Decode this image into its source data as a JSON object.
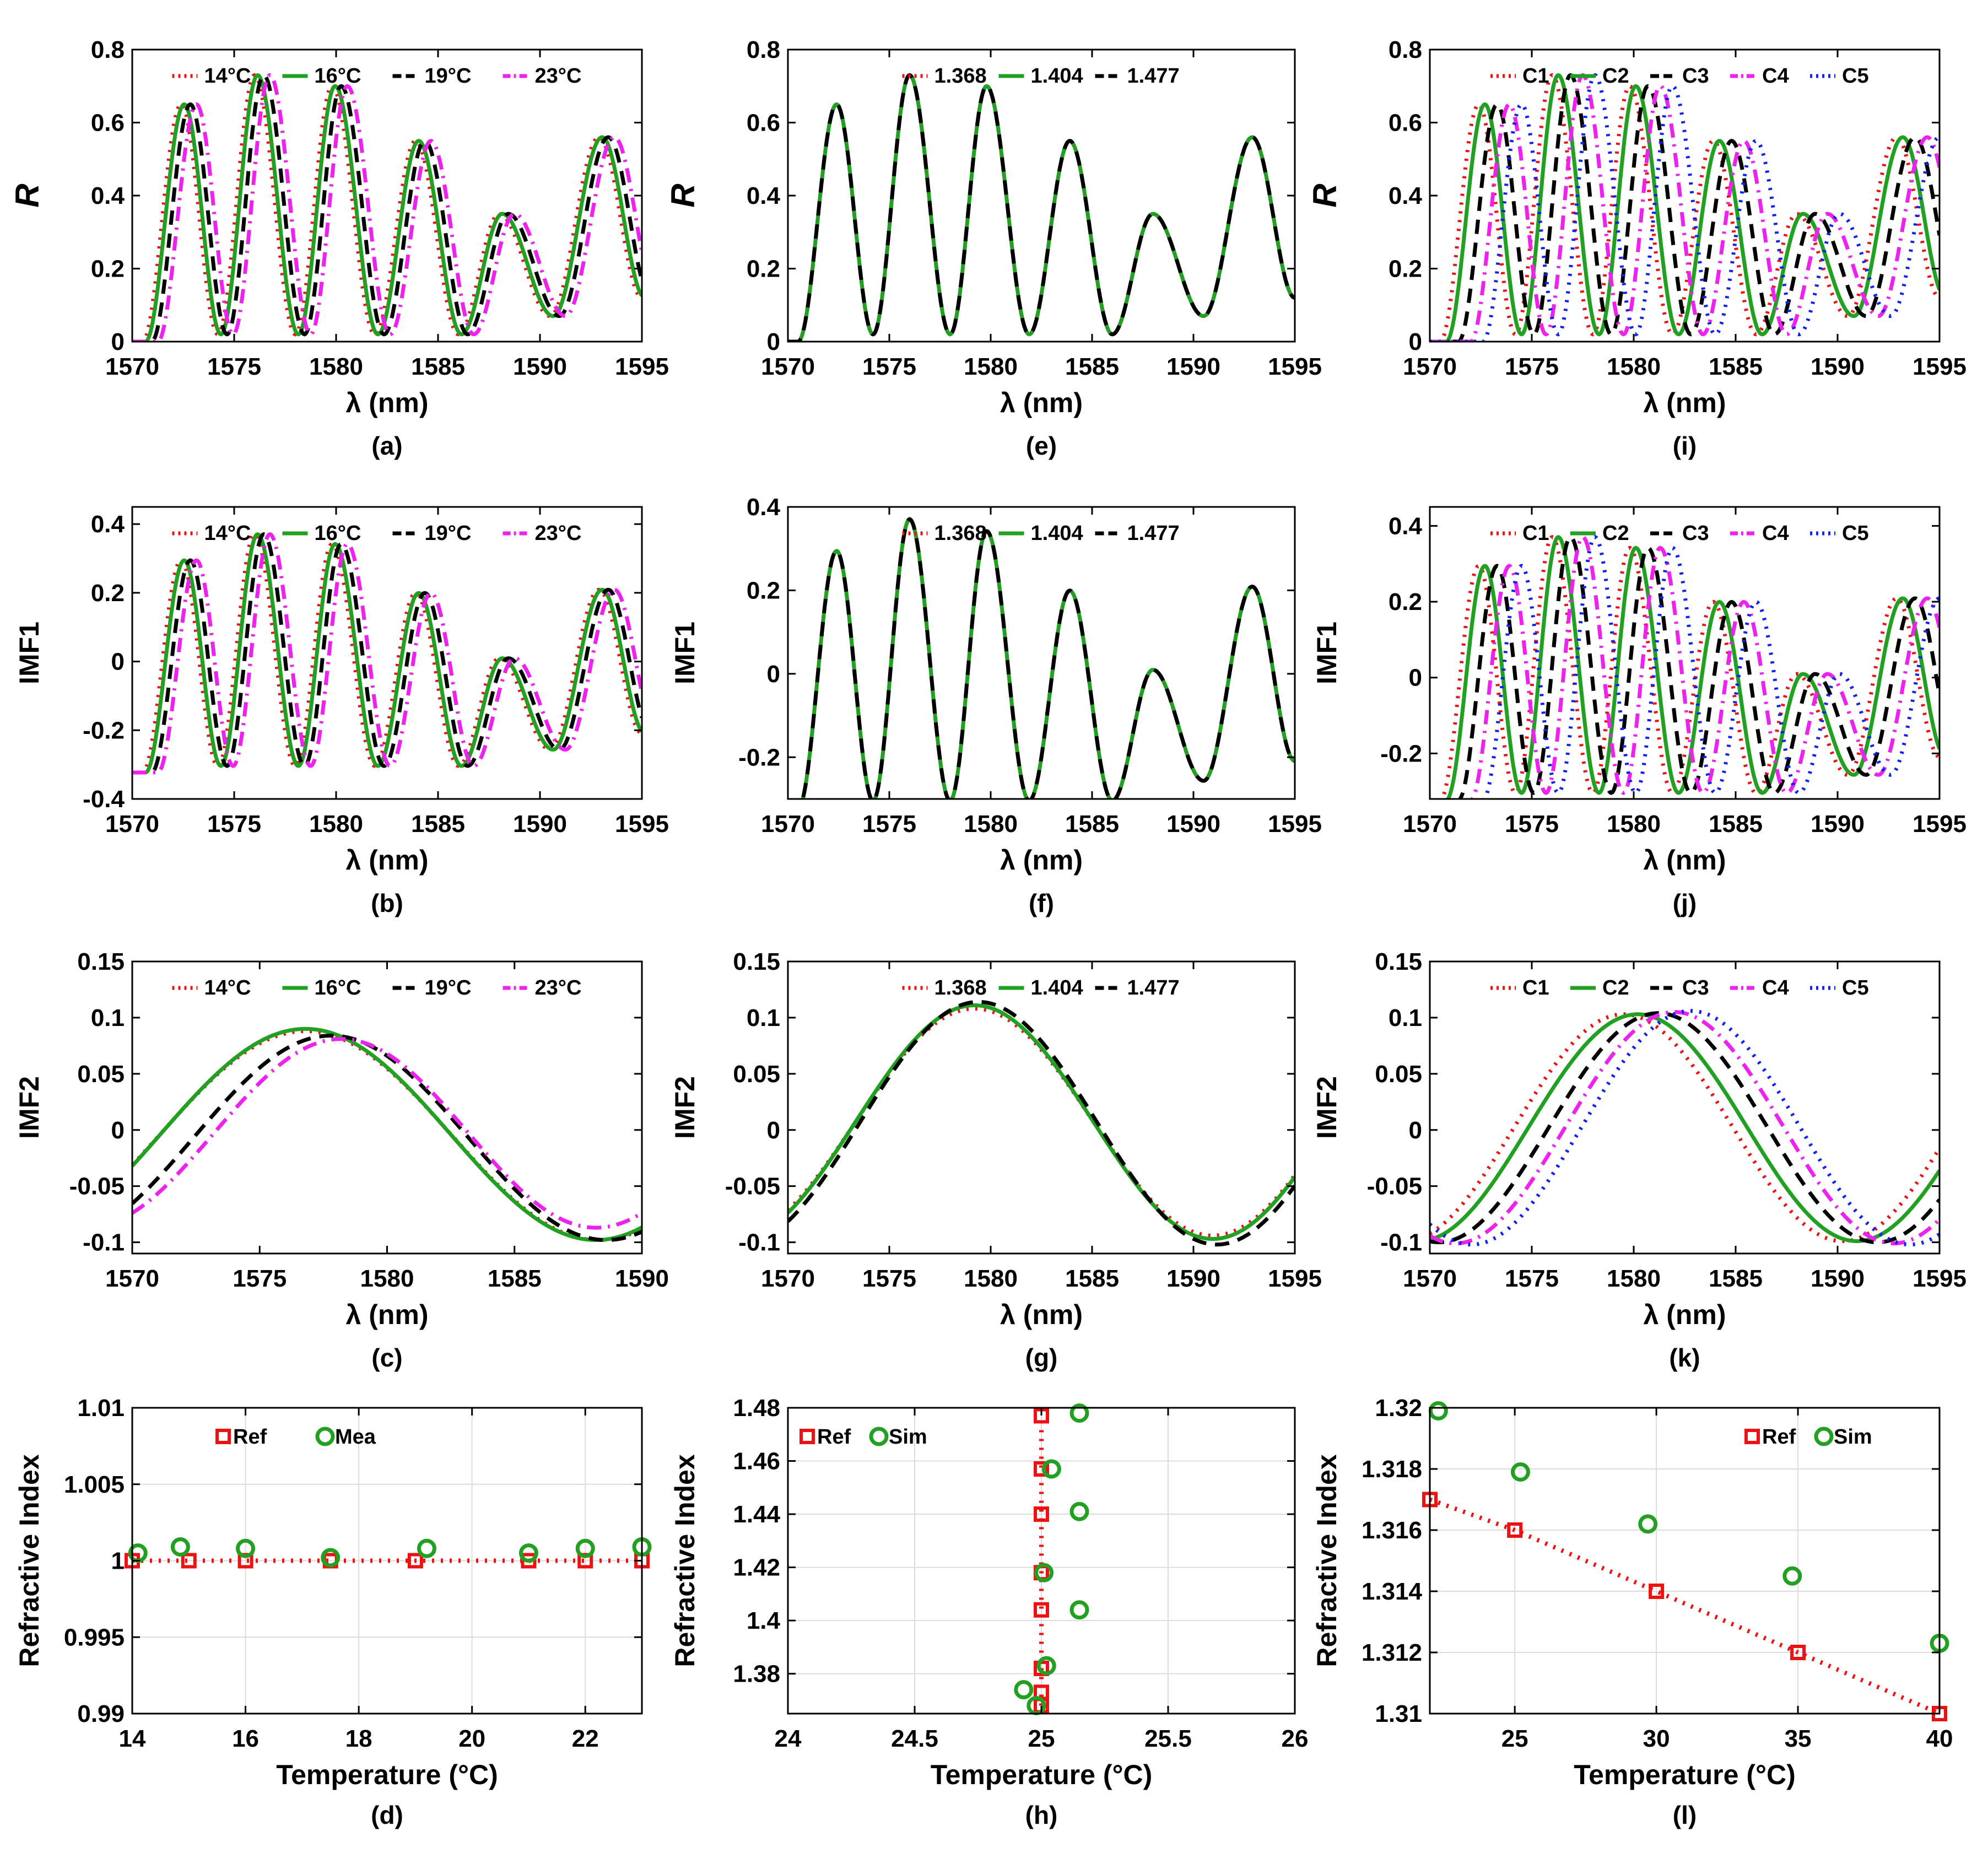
{
  "figure": {
    "colors": {
      "red": "#ee1111",
      "green": "#22a022",
      "black": "#000000",
      "magenta": "#ee22ee",
      "blue": "#1122ee"
    },
    "series_legends": {
      "temperature": [
        "14°C",
        "16°C",
        "19°C",
        "23°C"
      ],
      "ri": [
        "1.368",
        "1.404",
        "1.477"
      ],
      "conc": [
        "C1",
        "C2",
        "C3",
        "C4",
        "C5"
      ]
    }
  },
  "chart_data": [
    {
      "id": "a",
      "panel_label": "(a)",
      "type": "line",
      "xlabel": "λ (nm)",
      "ylabel": "R",
      "ylabel_italic": true,
      "xlim": [
        1570,
        1595
      ],
      "ylim": [
        0,
        0.8
      ],
      "xticks": [
        1570,
        1575,
        1580,
        1585,
        1590,
        1595
      ],
      "yticks": [
        0,
        0.2,
        0.4,
        0.6,
        0.8
      ],
      "ytick_labels": [
        "0",
        "0.2",
        "0.4",
        "0.6",
        "0.8"
      ],
      "legend": [
        {
          "name": "14°C",
          "color": "red",
          "dash": "dot"
        },
        {
          "name": "16°C",
          "color": "green",
          "dash": "solid"
        },
        {
          "name": "19°C",
          "color": "black",
          "dash": "dash"
        },
        {
          "name": "23°C",
          "color": "magenta",
          "dash": "dashdot"
        }
      ],
      "curve": "R",
      "wave": {
        "shifts": [
          0,
          0.15,
          0.45,
          0.75
        ]
      }
    },
    {
      "id": "b",
      "panel_label": "(b)",
      "type": "line",
      "xlabel": "λ (nm)",
      "ylabel": "IMF1",
      "xlim": [
        1570,
        1595
      ],
      "ylim": [
        -0.4,
        0.45
      ],
      "xticks": [
        1570,
        1575,
        1580,
        1585,
        1590,
        1595
      ],
      "yticks": [
        -0.4,
        -0.2,
        0,
        0.2,
        0.4
      ],
      "ytick_labels": [
        "-0.4",
        "-0.2",
        "0",
        "0.2",
        "0.4"
      ],
      "legend": [
        {
          "name": "14°C",
          "color": "red",
          "dash": "dot"
        },
        {
          "name": "16°C",
          "color": "green",
          "dash": "solid"
        },
        {
          "name": "19°C",
          "color": "black",
          "dash": "dash"
        },
        {
          "name": "23°C",
          "color": "magenta",
          "dash": "dashdot"
        }
      ],
      "curve": "IMF1",
      "wave": {
        "shifts": [
          0,
          0.15,
          0.45,
          0.75
        ]
      }
    },
    {
      "id": "c",
      "panel_label": "(c)",
      "type": "line",
      "xlabel": "λ (nm)",
      "ylabel": "IMF2",
      "xlim": [
        1570,
        1590
      ],
      "ylim": [
        -0.11,
        0.15
      ],
      "xticks": [
        1570,
        1575,
        1580,
        1585,
        1590
      ],
      "yticks": [
        -0.1,
        -0.05,
        0,
        0.05,
        0.1,
        0.15
      ],
      "ytick_labels": [
        "-0.1",
        "-0.05",
        "0",
        "0.05",
        "0.1",
        "0.15"
      ],
      "legend": [
        {
          "name": "14°C",
          "color": "red",
          "dash": "dot"
        },
        {
          "name": "16°C",
          "color": "green",
          "dash": "solid"
        },
        {
          "name": "19°C",
          "color": "black",
          "dash": "dash"
        },
        {
          "name": "23°C",
          "color": "magenta",
          "dash": "dashdot"
        }
      ],
      "curve": "IMF2",
      "sine": [
        {
          "peak": 1576.8,
          "amp": 0.093,
          "off": -0.005,
          "P": 23
        },
        {
          "peak": 1576.8,
          "amp": 0.094,
          "off": -0.004,
          "P": 22.8
        },
        {
          "peak": 1577.8,
          "amp": 0.091,
          "off": -0.007,
          "P": 21.6
        },
        {
          "peak": 1578.2,
          "amp": 0.084,
          "off": -0.003,
          "P": 20
        }
      ]
    },
    {
      "id": "d",
      "panel_label": "(d)",
      "type": "scatter",
      "xlabel": "Temperature (°C)",
      "ylabel": "Refractive Index",
      "xlim": [
        14,
        23
      ],
      "ylim": [
        0.99,
        1.01
      ],
      "xticks": [
        14,
        16,
        18,
        20,
        22
      ],
      "yticks": [
        0.99,
        0.995,
        1,
        1.005,
        1.01
      ],
      "ytick_labels": [
        "0.99",
        "0.995",
        "1",
        "1.005",
        "1.01"
      ],
      "legend": [
        {
          "name": "Ref",
          "marker": "square",
          "color": "red"
        },
        {
          "name": "Mea",
          "marker": "circle",
          "color": "green"
        }
      ],
      "legend_pos": "top-center",
      "series": [
        {
          "name": "Ref",
          "marker": "square",
          "color": "red",
          "line": true,
          "x": [
            14,
            15,
            16,
            17.5,
            19,
            21,
            22,
            23
          ],
          "y": [
            1,
            1,
            1,
            1,
            1,
            1,
            1,
            1
          ]
        },
        {
          "name": "Mea",
          "marker": "circle",
          "color": "green",
          "x": [
            14.1,
            14.85,
            16,
            17.5,
            19.2,
            21,
            22,
            23
          ],
          "y": [
            1.0005,
            1.0009,
            1.0008,
            1.0002,
            1.0008,
            1.0005,
            1.0008,
            1.0009
          ]
        }
      ]
    },
    {
      "id": "e",
      "panel_label": "(e)",
      "type": "line",
      "xlabel": "λ (nm)",
      "ylabel": "R",
      "ylabel_italic": true,
      "xlim": [
        1570,
        1595
      ],
      "ylim": [
        0,
        0.8
      ],
      "xticks": [
        1570,
        1575,
        1580,
        1585,
        1590,
        1595
      ],
      "yticks": [
        0,
        0.2,
        0.4,
        0.6,
        0.8
      ],
      "ytick_labels": [
        "0",
        "0.2",
        "0.4",
        "0.6",
        "0.8"
      ],
      "legend": [
        {
          "name": "1.368",
          "color": "red",
          "dash": "dot"
        },
        {
          "name": "1.404",
          "color": "green",
          "dash": "solid"
        },
        {
          "name": "1.477",
          "color": "black",
          "dash": "dash"
        }
      ],
      "curve": "R",
      "wave": {
        "shifts": [
          0,
          0,
          0
        ]
      }
    },
    {
      "id": "f",
      "panel_label": "(f)",
      "type": "line",
      "xlabel": "λ (nm)",
      "ylabel": "IMF1",
      "xlim": [
        1570,
        1595
      ],
      "ylim": [
        -0.3,
        0.4
      ],
      "xticks": [
        1570,
        1575,
        1580,
        1585,
        1590,
        1595
      ],
      "yticks": [
        -0.2,
        0,
        0.2,
        0.4
      ],
      "ytick_labels": [
        "-0.2",
        "0",
        "0.2",
        "0.4"
      ],
      "legend": [
        {
          "name": "1.368",
          "color": "red",
          "dash": "dot"
        },
        {
          "name": "1.404",
          "color": "green",
          "dash": "solid"
        },
        {
          "name": "1.477",
          "color": "black",
          "dash": "dash"
        }
      ],
      "curve": "IMF1",
      "wave": {
        "shifts": [
          0,
          0,
          0
        ]
      }
    },
    {
      "id": "g",
      "panel_label": "(g)",
      "type": "line",
      "xlabel": "λ (nm)",
      "ylabel": "IMF2",
      "xlim": [
        1570,
        1595
      ],
      "ylim": [
        -0.11,
        0.15
      ],
      "xticks": [
        1570,
        1575,
        1580,
        1585,
        1590,
        1595
      ],
      "yticks": [
        -0.1,
        -0.05,
        0,
        0.05,
        0.1,
        0.15
      ],
      "ytick_labels": [
        "-0.1",
        "-0.05",
        "0",
        "0.05",
        "0.1",
        "0.15"
      ],
      "legend": [
        {
          "name": "1.368",
          "color": "red",
          "dash": "dot"
        },
        {
          "name": "1.404",
          "color": "green",
          "dash": "solid"
        },
        {
          "name": "1.477",
          "color": "black",
          "dash": "dash"
        }
      ],
      "curve": "IMF2",
      "sine": [
        {
          "peak": 1579.2,
          "amp": 0.101,
          "off": 0.007,
          "P": 23.5
        },
        {
          "peak": 1579.2,
          "amp": 0.104,
          "off": 0.007,
          "P": 23.5
        },
        {
          "peak": 1579.4,
          "amp": 0.108,
          "off": 0.006,
          "P": 23.5
        }
      ]
    },
    {
      "id": "h",
      "panel_label": "(h)",
      "type": "scatter",
      "xlabel": "Temperature (°C)",
      "ylabel": "Refractive Index",
      "xlim": [
        24,
        26
      ],
      "ylim": [
        1.365,
        1.48
      ],
      "xticks": [
        24,
        24.5,
        25,
        25.5,
        26
      ],
      "yticks": [
        1.38,
        1.4,
        1.42,
        1.44,
        1.46,
        1.48
      ],
      "ytick_labels": [
        "1.38",
        "1.4",
        "1.42",
        "1.44",
        "1.46",
        "1.48"
      ],
      "legend": [
        {
          "name": "Ref",
          "marker": "square",
          "color": "red"
        },
        {
          "name": "Sim",
          "marker": "circle",
          "color": "green"
        }
      ],
      "legend_pos": "top-left",
      "series": [
        {
          "name": "Ref",
          "marker": "square",
          "color": "red",
          "line": true,
          "x": [
            25,
            25,
            25,
            25,
            25,
            25,
            25,
            25
          ],
          "y": [
            1.368,
            1.373,
            1.382,
            1.404,
            1.418,
            1.44,
            1.457,
            1.477
          ]
        },
        {
          "name": "Sim",
          "marker": "circle",
          "color": "green",
          "x": [
            24.93,
            24.98,
            25.02,
            25.04,
            25.15,
            25.15,
            25.15,
            25.01
          ],
          "y": [
            1.374,
            1.368,
            1.383,
            1.457,
            1.404,
            1.441,
            1.478,
            1.418
          ]
        }
      ]
    },
    {
      "id": "i",
      "panel_label": "(i)",
      "type": "line",
      "xlabel": "λ (nm)",
      "ylabel": "R",
      "ylabel_italic": true,
      "xlim": [
        1570,
        1595
      ],
      "ylim": [
        0,
        0.8
      ],
      "xticks": [
        1570,
        1575,
        1580,
        1585,
        1590,
        1595
      ],
      "yticks": [
        0,
        0.2,
        0.4,
        0.6,
        0.8
      ],
      "ytick_labels": [
        "0",
        "0.2",
        "0.4",
        "0.6",
        "0.8"
      ],
      "legend": [
        {
          "name": "C1",
          "color": "red",
          "dash": "dot"
        },
        {
          "name": "C2",
          "color": "green",
          "dash": "solid"
        },
        {
          "name": "C3",
          "color": "black",
          "dash": "dash"
        },
        {
          "name": "C4",
          "color": "magenta",
          "dash": "dashdot"
        },
        {
          "name": "C5",
          "color": "blue",
          "dash": "dot"
        }
      ],
      "curve": "R",
      "wave": {
        "shifts": [
          0,
          0.3,
          0.9,
          1.5,
          2.1
        ]
      }
    },
    {
      "id": "j",
      "panel_label": "(j)",
      "type": "line",
      "xlabel": "λ (nm)",
      "ylabel": "IMF1",
      "xlim": [
        1570,
        1595
      ],
      "ylim": [
        -0.32,
        0.45
      ],
      "xticks": [
        1570,
        1575,
        1580,
        1585,
        1590,
        1595
      ],
      "yticks": [
        -0.2,
        0,
        0.2,
        0.4
      ],
      "ytick_labels": [
        "-0.2",
        "0",
        "0.2",
        "0.4"
      ],
      "legend": [
        {
          "name": "C1",
          "color": "red",
          "dash": "dot"
        },
        {
          "name": "C2",
          "color": "green",
          "dash": "solid"
        },
        {
          "name": "C3",
          "color": "black",
          "dash": "dash"
        },
        {
          "name": "C4",
          "color": "magenta",
          "dash": "dashdot"
        },
        {
          "name": "C5",
          "color": "blue",
          "dash": "dot"
        }
      ],
      "curve": "IMF1",
      "wave": {
        "shifts": [
          0,
          0.3,
          0.9,
          1.5,
          2.1
        ]
      }
    },
    {
      "id": "k",
      "panel_label": "(k)",
      "type": "line",
      "xlabel": "λ (nm)",
      "ylabel": "IMF2",
      "xlim": [
        1570,
        1595
      ],
      "ylim": [
        -0.11,
        0.15
      ],
      "xticks": [
        1570,
        1575,
        1580,
        1585,
        1590,
        1595
      ],
      "yticks": [
        -0.1,
        -0.05,
        0,
        0.05,
        0.1,
        0.15
      ],
      "ytick_labels": [
        "-0.1",
        "-0.05",
        "0",
        "0.05",
        "0.1",
        "0.15"
      ],
      "legend": [
        {
          "name": "C1",
          "color": "red",
          "dash": "dot"
        },
        {
          "name": "C2",
          "color": "green",
          "dash": "solid"
        },
        {
          "name": "C3",
          "color": "black",
          "dash": "dash"
        },
        {
          "name": "C4",
          "color": "magenta",
          "dash": "dashdot"
        },
        {
          "name": "C5",
          "color": "blue",
          "dash": "dot"
        }
      ],
      "curve": "IMF2",
      "sine": [
        {
          "peak": 1579.5,
          "amp": 0.101,
          "off": 0.002,
          "P": 21.5
        },
        {
          "peak": 1580.2,
          "amp": 0.101,
          "off": 0.002,
          "P": 21.5
        },
        {
          "peak": 1581.2,
          "amp": 0.102,
          "off": 0.002,
          "P": 21.5
        },
        {
          "peak": 1582.0,
          "amp": 0.103,
          "off": 0.002,
          "P": 21.5
        },
        {
          "peak": 1582.8,
          "amp": 0.104,
          "off": 0.002,
          "P": 21.5
        }
      ]
    },
    {
      "id": "l",
      "panel_label": "(l)",
      "type": "scatter",
      "xlabel": "Temperature (°C)",
      "ylabel": "Refractive Index",
      "xlim": [
        22,
        40
      ],
      "ylim": [
        1.31,
        1.32
      ],
      "xticks": [
        25,
        30,
        35,
        40
      ],
      "yticks": [
        1.31,
        1.312,
        1.314,
        1.316,
        1.318,
        1.32
      ],
      "ytick_labels": [
        "1.31",
        "1.312",
        "1.314",
        "1.316",
        "1.318",
        "1.32"
      ],
      "legend": [
        {
          "name": "Ref",
          "marker": "square",
          "color": "red"
        },
        {
          "name": "Sim",
          "marker": "circle",
          "color": "green"
        }
      ],
      "legend_pos": "top-right",
      "series": [
        {
          "name": "Ref",
          "marker": "square",
          "color": "red",
          "line": true,
          "x": [
            22,
            25,
            30,
            35,
            40
          ],
          "y": [
            1.317,
            1.316,
            1.314,
            1.312,
            1.31
          ]
        },
        {
          "name": "Sim",
          "marker": "circle",
          "color": "green",
          "x": [
            22.3,
            25.2,
            29.7,
            34.8,
            40
          ],
          "y": [
            1.3199,
            1.3179,
            1.3162,
            1.3145,
            1.3123
          ]
        }
      ]
    }
  ]
}
